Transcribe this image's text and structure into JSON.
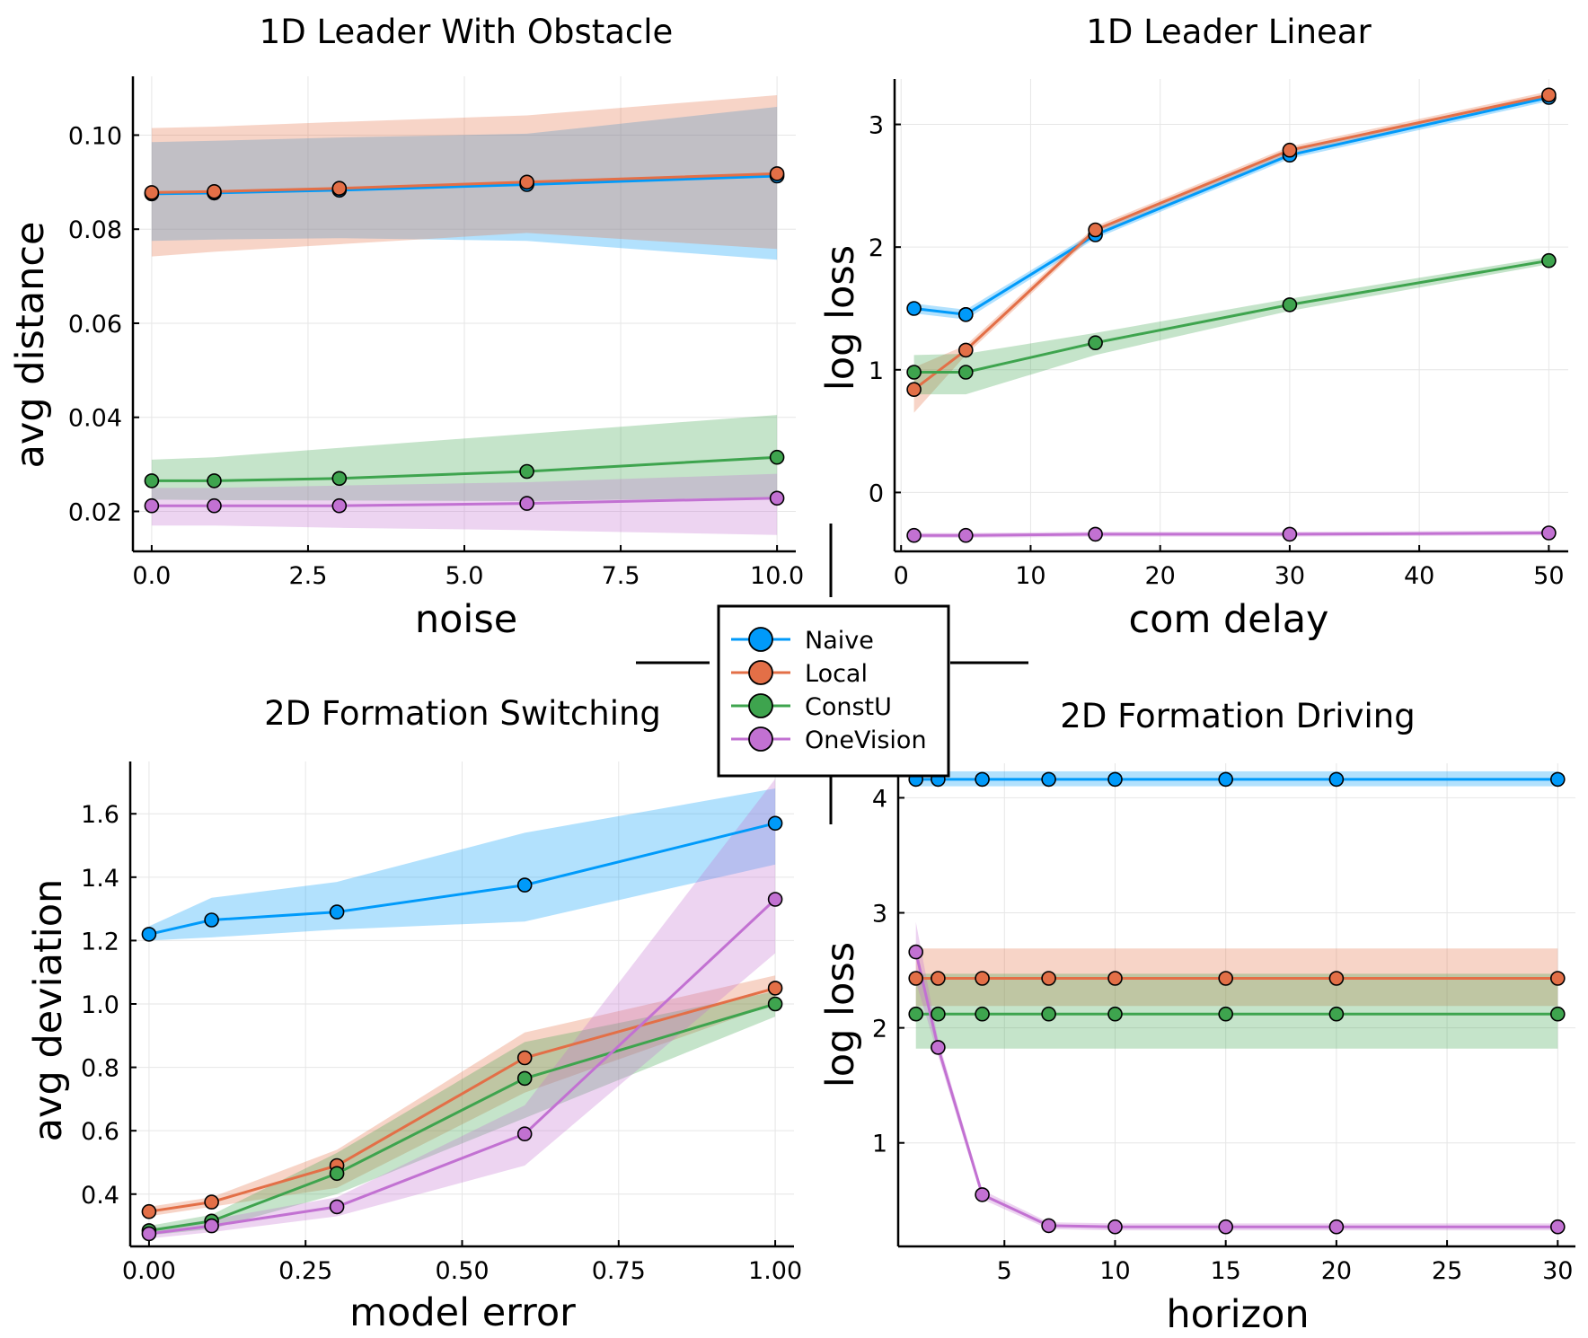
{
  "chart_data": [
    {
      "id": "p1",
      "type": "line",
      "title": "1D Leader With Obstacle",
      "xlabel": "noise",
      "ylabel": "avg distance",
      "xlim": [
        -0.3,
        10.3
      ],
      "ylim": [
        0.0115,
        0.1125
      ],
      "xticks": [
        0,
        2.5,
        5,
        7.5,
        10
      ],
      "xtick_labels": [
        "0.0",
        "2.5",
        "5.0",
        "7.5",
        "10.0"
      ],
      "yticks": [
        0.02,
        0.04,
        0.06,
        0.08,
        0.1
      ],
      "ytick_labels": [
        "0.02",
        "0.04",
        "0.06",
        "0.08",
        "0.10"
      ],
      "grid": true,
      "x": [
        0,
        1,
        3,
        6,
        10
      ],
      "series": [
        {
          "name": "Naive",
          "values": [
            0.0875,
            0.0877,
            0.0883,
            0.0895,
            0.0913
          ],
          "lower": [
            0.0775,
            0.0778,
            0.0781,
            0.0775,
            0.0735
          ],
          "upper": [
            0.0985,
            0.0988,
            0.0995,
            0.1003,
            0.106
          ]
        },
        {
          "name": "Local",
          "values": [
            0.0878,
            0.088,
            0.0887,
            0.09,
            0.0918
          ],
          "lower": [
            0.0742,
            0.0752,
            0.0768,
            0.0792,
            0.0758
          ],
          "upper": [
            0.1015,
            0.1018,
            0.1028,
            0.1042,
            0.1085
          ]
        },
        {
          "name": "ConstU",
          "values": [
            0.0265,
            0.0265,
            0.027,
            0.0285,
            0.0315
          ],
          "lower": [
            0.0225,
            0.0224,
            0.0223,
            0.0222,
            0.023
          ],
          "upper": [
            0.031,
            0.0315,
            0.0335,
            0.0365,
            0.0405
          ]
        },
        {
          "name": "OneVision",
          "values": [
            0.0212,
            0.0212,
            0.0212,
            0.0217,
            0.0228
          ],
          "lower": [
            0.017,
            0.017,
            0.0165,
            0.016,
            0.015
          ],
          "upper": [
            0.025,
            0.025,
            0.0255,
            0.0262,
            0.028
          ]
        }
      ]
    },
    {
      "id": "p2",
      "type": "line",
      "title": "1D Leader Linear",
      "xlabel": "com delay",
      "ylabel": "log loss",
      "xlim": [
        -0.5,
        51.5
      ],
      "ylim": [
        -0.48,
        3.37
      ],
      "xticks": [
        0,
        10,
        20,
        30,
        40,
        50
      ],
      "xtick_labels": [
        "0",
        "10",
        "20",
        "30",
        "40",
        "50"
      ],
      "yticks": [
        0,
        1,
        2,
        3
      ],
      "ytick_labels": [
        "0",
        "1",
        "2",
        "3"
      ],
      "grid": true,
      "series": [
        {
          "name": "Naive",
          "x": [
            1,
            5
          ],
          "values": [
            1.5,
            1.45
          ],
          "lower": [
            1.46,
            1.41
          ],
          "upper": [
            1.54,
            1.49
          ]
        },
        {
          "name": "Naive",
          "x": [
            5,
            15,
            30,
            50
          ],
          "values": [
            1.45,
            2.1,
            2.75,
            3.22
          ],
          "lower": [
            1.41,
            2.07,
            2.72,
            3.19
          ],
          "upper": [
            1.49,
            2.13,
            2.78,
            3.25
          ]
        },
        {
          "name": "Local",
          "x": [
            1,
            5,
            15,
            30,
            50
          ],
          "values": [
            0.84,
            1.16,
            2.14,
            2.79,
            3.24
          ],
          "lower": [
            0.65,
            1.12,
            2.11,
            2.76,
            3.21
          ],
          "upper": [
            1.02,
            1.2,
            2.17,
            2.82,
            3.27
          ]
        },
        {
          "name": "ConstU",
          "x": [
            1,
            5,
            15,
            30,
            50
          ],
          "values": [
            0.98,
            0.98,
            1.22,
            1.53,
            1.89
          ],
          "lower": [
            0.8,
            0.8,
            1.12,
            1.48,
            1.86
          ],
          "upper": [
            1.12,
            1.13,
            1.3,
            1.58,
            1.92
          ]
        },
        {
          "name": "OneVision",
          "x": [
            1,
            5,
            15,
            30,
            50
          ],
          "values": [
            -0.35,
            -0.35,
            -0.34,
            -0.34,
            -0.33
          ],
          "lower": [
            -0.37,
            -0.37,
            -0.36,
            -0.36,
            -0.35
          ],
          "upper": [
            -0.33,
            -0.33,
            -0.32,
            -0.32,
            -0.31
          ]
        }
      ]
    },
    {
      "id": "p3",
      "type": "line",
      "title": "2D Formation Switching",
      "xlabel": "model error",
      "ylabel": "avg deviation",
      "xlim": [
        -0.03,
        1.03
      ],
      "ylim": [
        0.235,
        1.765
      ],
      "xticks": [
        0,
        0.25,
        0.5,
        0.75,
        1.0
      ],
      "xtick_labels": [
        "0.00",
        "0.25",
        "0.50",
        "0.75",
        "1.00"
      ],
      "yticks": [
        0.4,
        0.6,
        0.8,
        1.0,
        1.2,
        1.4,
        1.6
      ],
      "ytick_labels": [
        "0.4",
        "0.6",
        "0.8",
        "1.0",
        "1.2",
        "1.4",
        "1.6"
      ],
      "grid": true,
      "x": [
        0,
        0.1,
        0.3,
        0.6,
        1.0
      ],
      "series": [
        {
          "name": "Naive",
          "values": [
            1.22,
            1.265,
            1.29,
            1.375,
            1.57
          ],
          "lower": [
            1.2,
            1.21,
            1.235,
            1.26,
            1.44
          ],
          "upper": [
            1.245,
            1.335,
            1.385,
            1.54,
            1.68
          ]
        },
        {
          "name": "Local",
          "values": [
            0.345,
            0.375,
            0.49,
            0.83,
            1.05
          ],
          "lower": [
            0.33,
            0.36,
            0.42,
            0.72,
            1.0
          ],
          "upper": [
            0.36,
            0.39,
            0.54,
            0.91,
            1.09
          ]
        },
        {
          "name": "ConstU",
          "values": [
            0.285,
            0.315,
            0.465,
            0.765,
            1.0
          ],
          "lower": [
            0.27,
            0.29,
            0.4,
            0.64,
            0.96
          ],
          "upper": [
            0.3,
            0.335,
            0.53,
            0.88,
            1.04
          ]
        },
        {
          "name": "OneVision",
          "values": [
            0.275,
            0.3,
            0.36,
            0.59,
            1.33
          ],
          "lower": [
            0.26,
            0.28,
            0.33,
            0.49,
            1.16
          ],
          "upper": [
            0.29,
            0.32,
            0.39,
            0.68,
            1.71
          ]
        }
      ]
    },
    {
      "id": "p4",
      "type": "line",
      "title": "2D Formation Driving",
      "xlabel": "horizon",
      "ylabel": "log loss",
      "xlim": [
        0.2,
        30.8
      ],
      "ylim": [
        0.1,
        4.3
      ],
      "xticks": [
        5,
        10,
        15,
        20,
        25,
        30
      ],
      "xtick_labels": [
        "5",
        "10",
        "15",
        "20",
        "25",
        "30"
      ],
      "yticks": [
        1,
        2,
        3,
        4
      ],
      "ytick_labels": [
        "1",
        "2",
        "3",
        "4"
      ],
      "grid": true,
      "x": [
        1,
        2,
        4,
        7,
        10,
        15,
        20,
        30
      ],
      "series": [
        {
          "name": "Naive",
          "values": [
            4.16,
            4.16,
            4.16,
            4.16,
            4.16,
            4.16,
            4.16,
            4.16
          ],
          "lower": [
            4.1,
            4.1,
            4.1,
            4.1,
            4.1,
            4.1,
            4.1,
            4.1
          ],
          "upper": [
            4.23,
            4.23,
            4.23,
            4.23,
            4.23,
            4.23,
            4.23,
            4.23
          ]
        },
        {
          "name": "Local",
          "values": [
            2.43,
            2.43,
            2.43,
            2.43,
            2.43,
            2.43,
            2.43,
            2.43
          ],
          "lower": [
            2.19,
            2.19,
            2.19,
            2.19,
            2.19,
            2.19,
            2.19,
            2.19
          ],
          "upper": [
            2.69,
            2.69,
            2.69,
            2.69,
            2.69,
            2.69,
            2.69,
            2.69
          ]
        },
        {
          "name": "ConstU",
          "values": [
            2.12,
            2.12,
            2.12,
            2.12,
            2.12,
            2.12,
            2.12,
            2.12
          ],
          "lower": [
            1.82,
            1.82,
            1.82,
            1.82,
            1.82,
            1.82,
            1.82,
            1.82
          ],
          "upper": [
            2.47,
            2.47,
            2.47,
            2.47,
            2.47,
            2.47,
            2.47,
            2.47
          ]
        },
        {
          "name": "OneVision",
          "values": [
            2.66,
            1.83,
            0.55,
            0.28,
            0.27,
            0.27,
            0.27,
            0.27
          ],
          "lower": [
            2.4,
            1.76,
            0.51,
            0.25,
            0.24,
            0.24,
            0.24,
            0.24
          ],
          "upper": [
            2.92,
            1.9,
            0.59,
            0.31,
            0.3,
            0.3,
            0.3,
            0.3
          ]
        }
      ]
    }
  ],
  "legend": {
    "placement": "center",
    "entries": [
      {
        "name": "Naive",
        "color": "#009AFA"
      },
      {
        "name": "Local",
        "color": "#E36F47"
      },
      {
        "name": "ConstU",
        "color": "#3EA44E"
      },
      {
        "name": "OneVision",
        "color": "#C271D2"
      }
    ]
  },
  "colors": {
    "Naive": "#009AFA",
    "Local": "#E36F47",
    "ConstU": "#3EA44E",
    "OneVision": "#C271D2"
  }
}
